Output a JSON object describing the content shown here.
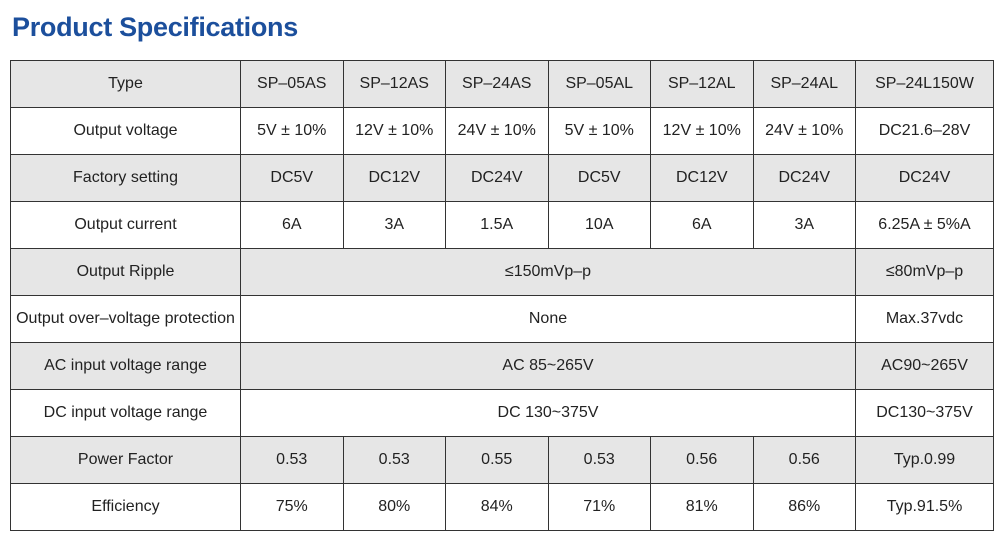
{
  "header": {
    "title": "Product Specifications"
  },
  "table": {
    "rows": [
      [
        "Type",
        "SP–05AS",
        "SP–12AS",
        "SP–24AS",
        "SP–05AL",
        "SP–12AL",
        "SP–24AL",
        "SP–24L150W"
      ],
      [
        "Output voltage",
        "5V ± 10%",
        "12V ± 10%",
        "24V ± 10%",
        "5V ± 10%",
        "12V ± 10%",
        "24V ± 10%",
        "DC21.6–28V"
      ],
      [
        "Factory setting",
        "DC5V",
        "DC12V",
        "DC24V",
        "DC5V",
        "DC12V",
        "DC24V",
        "DC24V"
      ],
      [
        "Output current",
        "6A",
        "3A",
        "1.5A",
        "10A",
        "6A",
        "3A",
        "6.25A ± 5%A"
      ],
      [
        "Output Ripple",
        "≤150mVp–p",
        "≤80mVp–p"
      ],
      [
        "Output over–voltage protection",
        "None",
        "Max.37vdc"
      ],
      [
        "AC input voltage range",
        "AC 85~265V",
        "AC90~265V"
      ],
      [
        "DC input voltage range",
        "DC 130~375V",
        "DC130~375V"
      ],
      [
        "Power Factor",
        "0.53",
        "0.53",
        "0.55",
        "0.53",
        "0.56",
        "0.56",
        "Typ.0.99"
      ],
      [
        "Efficiency",
        "75%",
        "80%",
        "84%",
        "71%",
        "81%",
        "86%",
        "Typ.91.5%"
      ]
    ]
  }
}
